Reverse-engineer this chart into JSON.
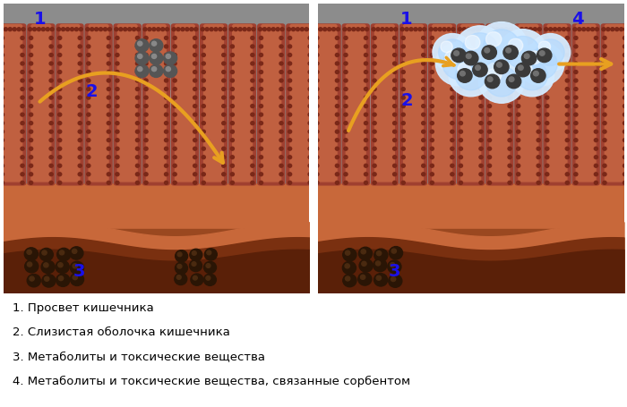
{
  "fig_width": 7.0,
  "fig_height": 4.56,
  "dpi": 100,
  "bg_color": "#ffffff",
  "lumen_bg": "#8a8a8a",
  "lumen_blur_color": "#b0b0b0",
  "villi_color": "#a0482a",
  "villi_edge_color": "#7a2a18",
  "villi_inner_color": "#c06040",
  "villi_dotted_color": "#7a2a18",
  "submucosal_color": "#c8704a",
  "bottom_layer_color": "#9a4820",
  "bottom_wave_color": "#7a3010",
  "border_color": "#1a3a8a",
  "arrow_color": "#e8a020",
  "label_color": "#1a10e8",
  "caption_color": "#000000",
  "dark_particle_color": "#2a1a0a",
  "dark_particle_highlight": "#5a3a2a",
  "gray_particle_color": "#555555",
  "gray_particle_highlight": "#888888",
  "sorbent_cloud_color": "#d8eeff",
  "sorbent_ball_color": "#a8d8ff",
  "captions": [
    "1. Просвет кишечника",
    "2. Слизистая оболочка кишечника",
    "3. Метаболиты и токсические вещества",
    "4. Метаболиты и токсические вещества, связанные сорбентом"
  ],
  "caption_fontsize": 9.5,
  "label_fontsize": 14
}
